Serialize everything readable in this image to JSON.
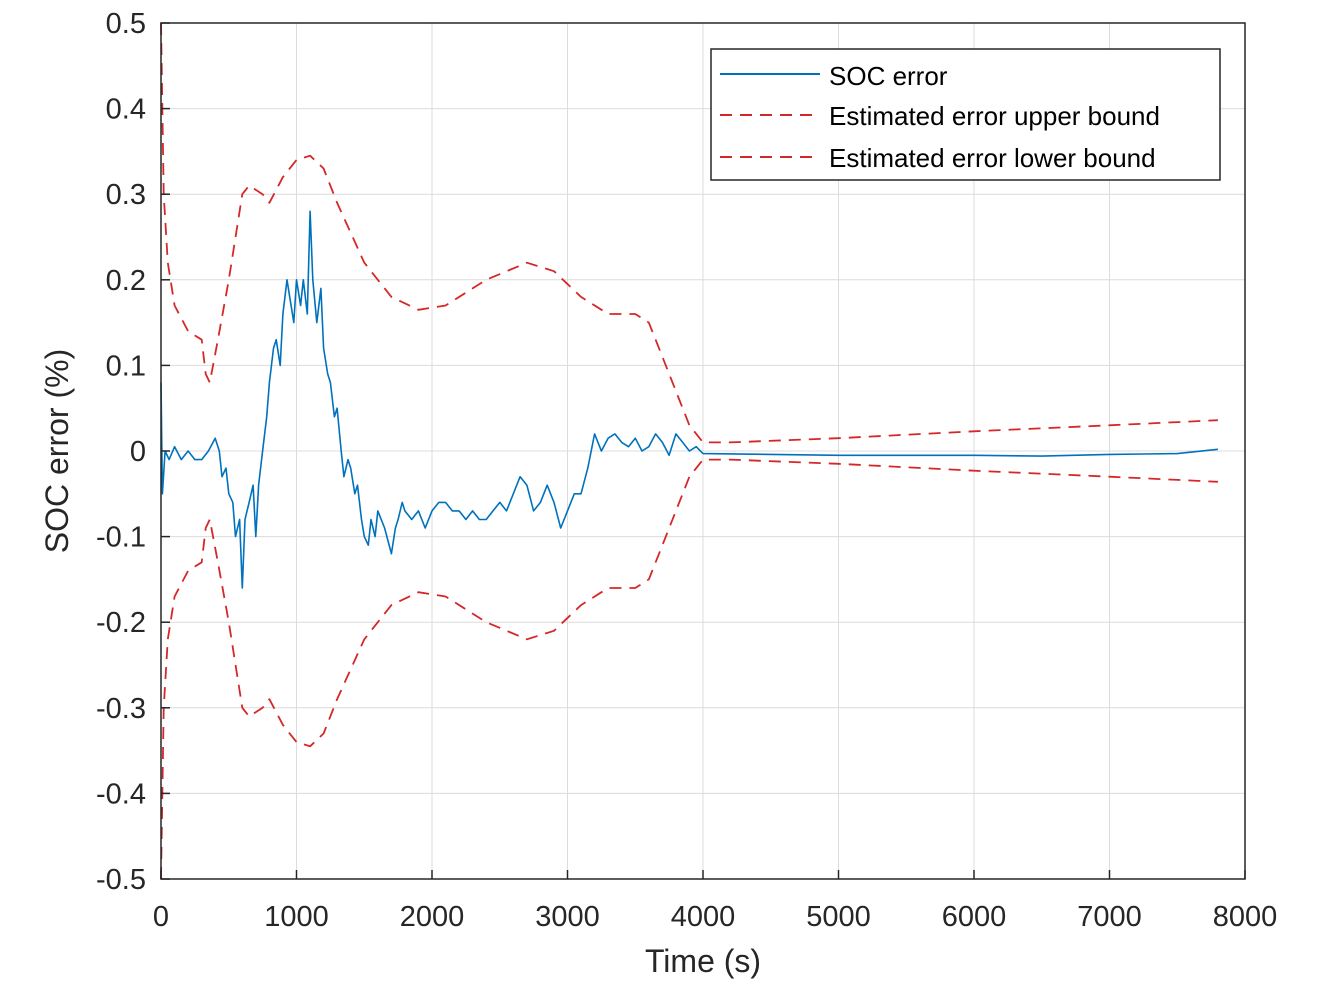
{
  "chart_data": {
    "type": "line",
    "title": "",
    "xlabel": "Time (s)",
    "ylabel": "SOC error (%)",
    "xlim": [
      0,
      8000
    ],
    "ylim": [
      -0.5,
      0.5
    ],
    "grid": true,
    "legend_position": "top-right",
    "xticks": [
      0,
      1000,
      2000,
      3000,
      4000,
      5000,
      6000,
      7000,
      8000
    ],
    "xtick_labels": [
      "0",
      "1000",
      "2000",
      "3000",
      "4000",
      "5000",
      "6000",
      "7000",
      "8000"
    ],
    "yticks": [
      0.5,
      0.4,
      0.3,
      0.2,
      0.1,
      0,
      -0.1,
      -0.2,
      -0.3,
      -0.4,
      -0.5
    ],
    "ytick_labels": [
      "0.5",
      "0.4",
      "0.3",
      "0.2",
      "0.1",
      "0",
      "-0.1",
      "-0.2",
      "-0.3",
      "-0.4",
      "-0.5"
    ],
    "series": [
      {
        "name": "SOC error",
        "color": "#0072BD",
        "style": "solid",
        "x": [
          0,
          10,
          30,
          60,
          100,
          150,
          200,
          250,
          300,
          350,
          400,
          430,
          450,
          480,
          500,
          530,
          550,
          580,
          600,
          620,
          650,
          680,
          700,
          720,
          750,
          780,
          800,
          830,
          850,
          880,
          900,
          930,
          950,
          980,
          1000,
          1030,
          1050,
          1080,
          1100,
          1120,
          1150,
          1180,
          1200,
          1230,
          1250,
          1280,
          1300,
          1330,
          1350,
          1380,
          1400,
          1430,
          1450,
          1480,
          1500,
          1530,
          1550,
          1580,
          1600,
          1650,
          1700,
          1730,
          1750,
          1780,
          1800,
          1850,
          1900,
          1950,
          2000,
          2050,
          2100,
          2150,
          2200,
          2250,
          2300,
          2350,
          2400,
          2450,
          2500,
          2550,
          2600,
          2650,
          2700,
          2750,
          2800,
          2850,
          2900,
          2950,
          3000,
          3050,
          3100,
          3150,
          3200,
          3250,
          3300,
          3350,
          3400,
          3450,
          3500,
          3550,
          3600,
          3650,
          3700,
          3750,
          3800,
          3850,
          3900,
          3950,
          4000,
          4500,
          5000,
          5500,
          6000,
          6500,
          7000,
          7500,
          7800
        ],
        "y": [
          0.08,
          -0.05,
          0.0,
          -0.01,
          0.005,
          -0.01,
          0.0,
          -0.01,
          -0.01,
          0.0,
          0.015,
          0.0,
          -0.03,
          -0.02,
          -0.05,
          -0.06,
          -0.1,
          -0.08,
          -0.16,
          -0.08,
          -0.06,
          -0.04,
          -0.1,
          -0.04,
          0.0,
          0.04,
          0.08,
          0.12,
          0.13,
          0.1,
          0.16,
          0.2,
          0.18,
          0.15,
          0.2,
          0.17,
          0.2,
          0.16,
          0.28,
          0.2,
          0.15,
          0.19,
          0.12,
          0.09,
          0.08,
          0.04,
          0.05,
          0.0,
          -0.03,
          -0.01,
          -0.02,
          -0.05,
          -0.04,
          -0.08,
          -0.1,
          -0.11,
          -0.08,
          -0.1,
          -0.07,
          -0.09,
          -0.12,
          -0.09,
          -0.08,
          -0.06,
          -0.07,
          -0.08,
          -0.07,
          -0.09,
          -0.07,
          -0.06,
          -0.06,
          -0.07,
          -0.07,
          -0.08,
          -0.07,
          -0.08,
          -0.08,
          -0.07,
          -0.06,
          -0.07,
          -0.05,
          -0.03,
          -0.04,
          -0.07,
          -0.06,
          -0.04,
          -0.06,
          -0.09,
          -0.07,
          -0.05,
          -0.05,
          -0.02,
          0.02,
          0.0,
          0.015,
          0.02,
          0.01,
          0.005,
          0.015,
          0.0,
          0.005,
          0.02,
          0.01,
          -0.005,
          0.02,
          0.01,
          0.0,
          0.005,
          -0.003,
          -0.004,
          -0.005,
          -0.005,
          -0.005,
          -0.006,
          -0.004,
          -0.003,
          0.002
        ]
      },
      {
        "name": "Estimated error upper bound",
        "color": "#D62728",
        "style": "dashed",
        "x": [
          0,
          20,
          50,
          100,
          200,
          300,
          330,
          360,
          420,
          500,
          600,
          650,
          750,
          800,
          900,
          1000,
          1100,
          1200,
          1300,
          1500,
          1700,
          1900,
          2100,
          2400,
          2700,
          2900,
          3100,
          3300,
          3500,
          3600,
          3700,
          3800,
          3900,
          4000,
          4200,
          5000,
          6000,
          7000,
          7800
        ],
        "y": [
          0.5,
          0.3,
          0.22,
          0.17,
          0.14,
          0.13,
          0.09,
          0.08,
          0.13,
          0.2,
          0.3,
          0.31,
          0.3,
          0.29,
          0.32,
          0.34,
          0.345,
          0.33,
          0.29,
          0.22,
          0.18,
          0.165,
          0.17,
          0.2,
          0.22,
          0.21,
          0.18,
          0.16,
          0.16,
          0.15,
          0.11,
          0.07,
          0.03,
          0.01,
          0.01,
          0.015,
          0.023,
          0.03,
          0.036
        ]
      },
      {
        "name": "Estimated error lower bound",
        "color": "#D62728",
        "style": "dashed",
        "x": [
          0,
          20,
          50,
          100,
          200,
          300,
          330,
          360,
          420,
          500,
          600,
          650,
          750,
          800,
          900,
          1000,
          1100,
          1200,
          1300,
          1500,
          1700,
          1900,
          2100,
          2400,
          2700,
          2900,
          3100,
          3300,
          3500,
          3600,
          3700,
          3800,
          3900,
          4000,
          4200,
          5000,
          6000,
          7000,
          7800
        ],
        "y": [
          -0.5,
          -0.3,
          -0.22,
          -0.17,
          -0.14,
          -0.13,
          -0.09,
          -0.08,
          -0.13,
          -0.2,
          -0.3,
          -0.31,
          -0.3,
          -0.29,
          -0.32,
          -0.34,
          -0.345,
          -0.33,
          -0.29,
          -0.22,
          -0.18,
          -0.165,
          -0.17,
          -0.2,
          -0.22,
          -0.21,
          -0.18,
          -0.16,
          -0.16,
          -0.15,
          -0.11,
          -0.07,
          -0.03,
          -0.01,
          -0.01,
          -0.015,
          -0.023,
          -0.03,
          -0.036
        ]
      }
    ]
  }
}
